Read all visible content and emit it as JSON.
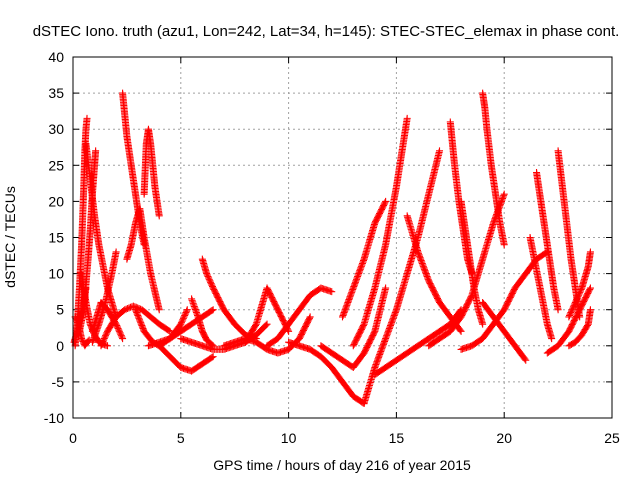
{
  "chart_data": {
    "type": "scatter",
    "title": "dSTEC Iono. truth (azu1, Lon=242, Lat=34, h=145): STEC-STEC_elemax in phase cont.",
    "xlabel": "GPS time / hours of day 216 of year 2015",
    "ylabel": "dSTEC  / TECUs",
    "xlim": [
      0,
      25
    ],
    "ylim": [
      -10,
      40
    ],
    "xticks": [
      0,
      5,
      10,
      15,
      20,
      25
    ],
    "yticks": [
      -10,
      -5,
      0,
      5,
      10,
      15,
      20,
      25,
      30,
      35,
      40
    ],
    "grid": true,
    "marker": "+",
    "color": "#ff0000",
    "series": [
      {
        "x": [
          0.05,
          0.2,
          0.35,
          0.5,
          0.6
        ],
        "y": [
          0.5,
          2,
          4,
          6,
          8
        ]
      },
      {
        "x": [
          0.1,
          0.25,
          0.4,
          0.55,
          0.65,
          0.75
        ],
        "y": [
          4,
          3,
          1,
          0,
          0.5,
          0.8
        ]
      },
      {
        "x": [
          0.1,
          0.2,
          0.3,
          0.4,
          0.5,
          0.55,
          0.6,
          0.65
        ],
        "y": [
          0,
          3,
          8,
          14,
          22,
          27,
          30,
          31.5
        ]
      },
      {
        "x": [
          0.3,
          0.5,
          0.7,
          0.8,
          0.9,
          1.0,
          1.05
        ],
        "y": [
          2,
          5,
          12,
          16,
          21,
          25,
          27
        ]
      },
      {
        "x": [
          0.4,
          0.6,
          0.8,
          1.0,
          1.2,
          1.4,
          1.6
        ],
        "y": [
          10,
          6,
          3,
          1.5,
          0.5,
          0.2,
          0
        ]
      },
      {
        "x": [
          0.6,
          0.8,
          1.0,
          1.2,
          1.4,
          1.6,
          1.8,
          2.0
        ],
        "y": [
          28,
          23,
          18,
          14,
          11,
          8,
          6,
          4
        ]
      },
      {
        "x": [
          0.9,
          1.2,
          1.5,
          1.8,
          2.0
        ],
        "y": [
          0.5,
          3,
          6,
          10,
          13
        ]
      },
      {
        "x": [
          0.9,
          1.1,
          1.3,
          1.6,
          2.0,
          2.3
        ],
        "y": [
          2,
          4,
          6,
          5,
          3,
          1
        ]
      },
      {
        "x": [
          2.3,
          2.4,
          2.5,
          2.7,
          2.9,
          3.1,
          3.3
        ],
        "y": [
          35,
          32,
          29,
          25,
          21,
          17,
          14
        ]
      },
      {
        "x": [
          2.5,
          2.7,
          2.9,
          3.1,
          3.3,
          3.6,
          4.0
        ],
        "y": [
          12,
          14,
          17,
          19,
          15,
          10,
          5
        ]
      },
      {
        "x": [
          3.3,
          3.4,
          3.5,
          3.6,
          3.8,
          4.0
        ],
        "y": [
          21,
          28,
          30,
          28,
          22,
          18
        ]
      },
      {
        "x": [
          1.3,
          1.6,
          2.0,
          2.4,
          2.8,
          3.2,
          3.6,
          4.0,
          4.5
        ],
        "y": [
          0,
          2,
          4,
          5,
          5.5,
          5,
          4,
          3,
          2
        ]
      },
      {
        "x": [
          2.9,
          3.3,
          3.7,
          4.0,
          4.5,
          5.0,
          5.3
        ],
        "y": [
          5,
          2,
          0.5,
          0,
          1,
          3,
          5
        ]
      },
      {
        "x": [
          4.0,
          4.5,
          5.0,
          5.5,
          6.0,
          6.5
        ],
        "y": [
          0,
          -1.5,
          -3,
          -3.5,
          -2.5,
          -1.5
        ]
      },
      {
        "x": [
          3.5,
          4.0,
          4.5,
          5.0,
          5.5,
          6.0,
          6.5
        ],
        "y": [
          0,
          0.5,
          1,
          2,
          3,
          4,
          5
        ]
      },
      {
        "x": [
          5.5,
          5.8,
          6.0,
          6.2,
          6.5
        ],
        "y": [
          6.5,
          4,
          2,
          0.8,
          0
        ]
      },
      {
        "x": [
          6.0,
          6.2,
          6.5,
          7.0,
          7.5,
          8.0,
          8.5
        ],
        "y": [
          12,
          10,
          8,
          5,
          3,
          1.5,
          1
        ]
      },
      {
        "x": [
          5.0,
          5.5,
          6.0,
          6.5,
          7.0,
          7.5,
          8.0,
          8.5,
          9.0
        ],
        "y": [
          1,
          0.5,
          0,
          -0.5,
          -0.5,
          0,
          0.5,
          1.5,
          3
        ]
      },
      {
        "x": [
          7.0,
          7.5,
          8.0,
          8.5,
          9.0,
          9.5,
          10.0,
          10.5,
          11.0
        ],
        "y": [
          0,
          0.5,
          1,
          0.5,
          -0.5,
          -1,
          -0.5,
          1,
          4
        ]
      },
      {
        "x": [
          8.0,
          8.5,
          9.0,
          9.5,
          10.0
        ],
        "y": [
          0.5,
          3,
          8,
          5,
          2
        ]
      },
      {
        "x": [
          9.0,
          9.5,
          10.0,
          10.5,
          11.0,
          11.5,
          12.0
        ],
        "y": [
          0,
          1,
          3,
          5,
          7,
          8,
          7.5
        ]
      },
      {
        "x": [
          10.0,
          10.5,
          11.0,
          11.5,
          12.0,
          12.5,
          13.0,
          13.5
        ],
        "y": [
          0.5,
          0,
          -0.5,
          -1.5,
          -3,
          -5,
          -7,
          -8
        ]
      },
      {
        "x": [
          11.5,
          12.0,
          12.5,
          13.0,
          13.5,
          14.0,
          14.5
        ],
        "y": [
          0,
          -1,
          -2,
          -3,
          -1,
          2,
          8
        ]
      },
      {
        "x": [
          12.5,
          13.0,
          13.5,
          14.0,
          14.5
        ],
        "y": [
          4,
          8,
          12,
          17,
          20
        ]
      },
      {
        "x": [
          13.0,
          13.5,
          14.0,
          14.5,
          15.0,
          15.5
        ],
        "y": [
          0,
          3,
          8,
          14,
          22,
          31.5
        ]
      },
      {
        "x": [
          13.5,
          14.0,
          14.5,
          15.0,
          15.5,
          16.0,
          16.5,
          17.0
        ],
        "y": [
          -8,
          -3,
          1,
          5,
          10,
          15,
          21,
          27
        ]
      },
      {
        "x": [
          14.0,
          14.5,
          15.0,
          15.5,
          16.0,
          16.5,
          17.0,
          17.5,
          18.0
        ],
        "y": [
          -4,
          -3,
          -2,
          -1,
          0,
          1,
          2,
          3,
          5
        ]
      },
      {
        "x": [
          15.5,
          16.0,
          16.5,
          17.0,
          17.5,
          18.0
        ],
        "y": [
          18,
          13,
          9,
          6,
          4,
          2
        ]
      },
      {
        "x": [
          16.5,
          17.0,
          17.5,
          18.0,
          18.5,
          19.0,
          19.5,
          20.0
        ],
        "y": [
          0,
          1,
          2,
          4,
          7,
          12,
          17,
          21
        ]
      },
      {
        "x": [
          17.5,
          17.7,
          17.9,
          18.1,
          18.3,
          18.5
        ],
        "y": [
          31,
          25,
          20,
          16,
          12,
          10
        ]
      },
      {
        "x": [
          18.0,
          18.2,
          18.4,
          18.6,
          18.8,
          19.0
        ],
        "y": [
          20,
          16,
          12,
          8,
          5,
          3
        ]
      },
      {
        "x": [
          19.0,
          19.1,
          19.2,
          19.4,
          19.6,
          19.8,
          20.0
        ],
        "y": [
          35,
          33,
          30,
          25,
          21,
          17,
          14
        ]
      },
      {
        "x": [
          19.0,
          19.5,
          20.0,
          20.5,
          21.0
        ],
        "y": [
          6,
          4,
          2,
          0,
          -2
        ]
      },
      {
        "x": [
          18.0,
          18.5,
          19.0,
          19.5,
          20.0,
          20.5,
          21.0,
          21.5,
          22.0
        ],
        "y": [
          -0.5,
          0,
          1,
          3,
          5,
          8,
          10,
          12,
          13
        ]
      },
      {
        "x": [
          21.2,
          21.4,
          21.6,
          21.8,
          22.0,
          22.2
        ],
        "y": [
          15,
          12,
          9,
          6,
          3,
          1
        ]
      },
      {
        "x": [
          21.5,
          21.7,
          21.9,
          22.1,
          22.3,
          22.5
        ],
        "y": [
          24,
          20,
          16,
          12,
          8,
          5
        ]
      },
      {
        "x": [
          22.0,
          22.5,
          23.0,
          23.5,
          24.0
        ],
        "y": [
          -1,
          0,
          2,
          5,
          8
        ]
      },
      {
        "x": [
          22.5,
          22.7,
          22.9,
          23.1,
          23.3,
          23.5
        ],
        "y": [
          27,
          22,
          17,
          12,
          8,
          4
        ]
      },
      {
        "x": [
          23.0,
          23.3,
          23.6,
          23.9,
          24.0
        ],
        "y": [
          4,
          6,
          8,
          11,
          13
        ]
      },
      {
        "x": [
          23.0,
          23.3,
          23.6,
          23.9,
          24.0
        ],
        "y": [
          0,
          0.5,
          1.5,
          3,
          5
        ]
      }
    ]
  }
}
